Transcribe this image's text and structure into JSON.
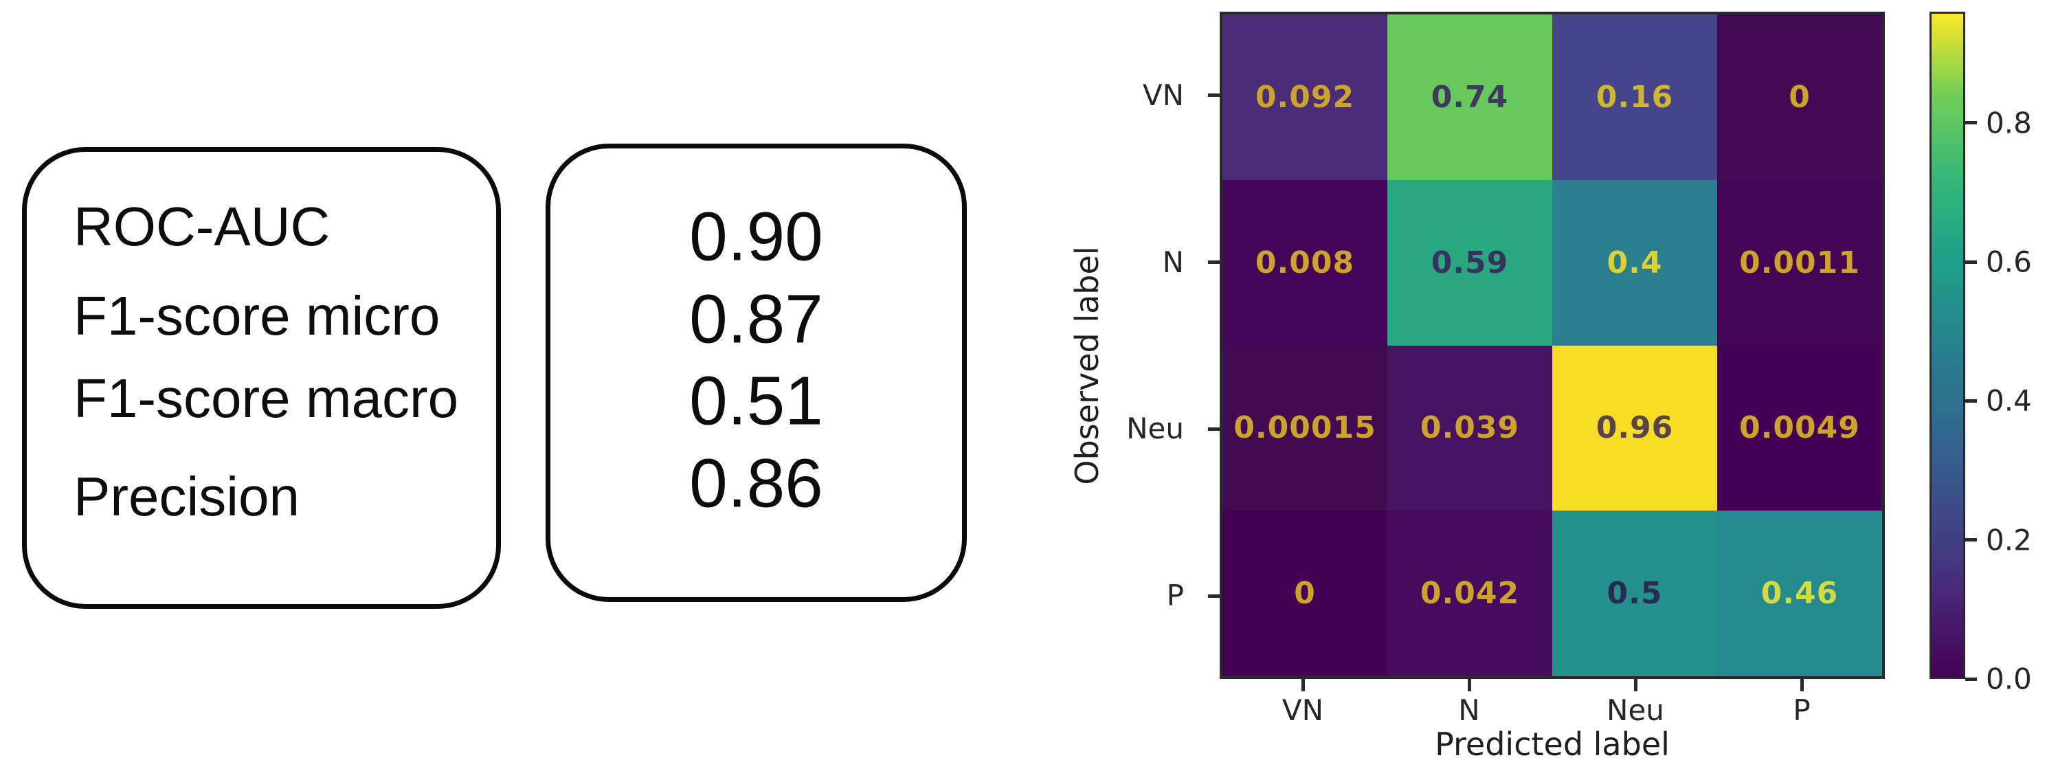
{
  "figure": {
    "background": "#ffffff",
    "spine_color": "#2a2a2a",
    "tick_text_color": "#262626"
  },
  "metrics_panel": {
    "labels": [
      "ROC-AUC",
      "F1-score micro",
      "F1-score macro",
      "Precision"
    ],
    "values": [
      "0.90",
      "0.87",
      "0.51",
      "0.86"
    ]
  },
  "heatmap": {
    "xlabel": "Predicted label",
    "ylabel": "Observed label",
    "x_tick_labels": [
      "VN",
      "N",
      "Neu",
      "P"
    ],
    "y_tick_labels": [
      "VN",
      "N",
      "Neu",
      "P"
    ],
    "cells": [
      {
        "label": "0.092",
        "bg": "#4a2c78",
        "fg": "#cda426"
      },
      {
        "label": "0.74",
        "bg": "#68c95b",
        "fg": "#3f3863"
      },
      {
        "label": "0.16",
        "bg": "#46448a",
        "fg": "#d2b62b"
      },
      {
        "label": "0",
        "bg": "#440a56",
        "fg": "#cda426"
      },
      {
        "label": "0.008",
        "bg": "#45065a",
        "fg": "#cda426"
      },
      {
        "label": "0.59",
        "bg": "#28a781",
        "fg": "#39325f"
      },
      {
        "label": "0.4",
        "bg": "#2a7e8e",
        "fg": "#dbd232"
      },
      {
        "label": "0.0011",
        "bg": "#440557",
        "fg": "#cda426"
      },
      {
        "label": "0.00015",
        "bg": "#440b55",
        "fg": "#cda426"
      },
      {
        "label": "0.039",
        "bg": "#481263",
        "fg": "#cda426"
      },
      {
        "label": "0.96",
        "bg": "#f6dc23",
        "fg": "#564450"
      },
      {
        "label": "0.0049",
        "bg": "#440256",
        "fg": "#cda426"
      },
      {
        "label": "0",
        "bg": "#440154",
        "fg": "#cda426"
      },
      {
        "label": "0.042",
        "bg": "#470b5e",
        "fg": "#cda426"
      },
      {
        "label": "0.5",
        "bg": "#23918a",
        "fg": "#2c2857"
      },
      {
        "label": "0.46",
        "bg": "#248a90",
        "fg": "#d5da3e"
      }
    ],
    "colorbar": {
      "tick_labels": [
        "0.0",
        "0.2",
        "0.4",
        "0.6",
        "0.8"
      ],
      "vmin": 0.0,
      "vmax": 0.96,
      "colormap": "viridis",
      "gradient_stops": [
        "#440154",
        "#482878",
        "#3e4a89",
        "#31688e",
        "#26828e",
        "#1f9e89",
        "#35b779",
        "#6ece58",
        "#fde725"
      ]
    }
  },
  "chart_data": [
    {
      "type": "table",
      "title": "Model metrics",
      "rows": [
        [
          "ROC-AUC",
          0.9
        ],
        [
          "F1-score micro",
          0.87
        ],
        [
          "F1-score macro",
          0.51
        ],
        [
          "Precision",
          0.86
        ]
      ]
    },
    {
      "type": "heatmap",
      "title": "Normalized confusion matrix",
      "xlabel": "Predicted label",
      "ylabel": "Observed label",
      "x_categories": [
        "VN",
        "N",
        "Neu",
        "P"
      ],
      "y_categories": [
        "VN",
        "N",
        "Neu",
        "P"
      ],
      "matrix": [
        [
          0.092,
          0.74,
          0.16,
          0
        ],
        [
          0.008,
          0.59,
          0.4,
          0.0011
        ],
        [
          0.00015,
          0.039,
          0.96,
          0.0049
        ],
        [
          0,
          0.042,
          0.5,
          0.46
        ]
      ],
      "colormap": "viridis",
      "vmin": 0.0,
      "vmax": 0.96,
      "colorbar_ticks": [
        0.0,
        0.2,
        0.4,
        0.6,
        0.8
      ],
      "colorbar_position": "right",
      "grid": false,
      "legend_position": "none"
    }
  ]
}
